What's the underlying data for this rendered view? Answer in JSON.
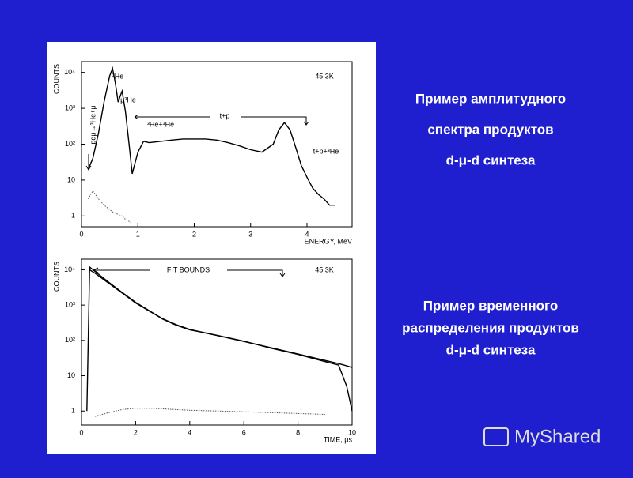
{
  "chart_data": [
    {
      "type": "line",
      "xlabel": "ENERGY, MeV",
      "ylabel": "COUNTS",
      "log_y": true,
      "xlim": [
        0,
        4.8
      ],
      "xticks": [
        0,
        1,
        2,
        3,
        4
      ],
      "ylim": [
        0.5,
        20000
      ],
      "yticks": [
        1,
        10,
        {
          "value": 100,
          "label": "10²"
        },
        {
          "value": 1000,
          "label": "10³"
        },
        {
          "value": 10000,
          "label": "10⁴"
        }
      ],
      "annotations": [
        "45.3K",
        "³He",
        "μ³He",
        "t+p",
        "³He+³He",
        "t+p+³He",
        "pdμ→³He+μ"
      ],
      "x": [
        0.12,
        0.2,
        0.3,
        0.4,
        0.5,
        0.55,
        0.6,
        0.65,
        0.7,
        0.72,
        0.78,
        0.85,
        0.9,
        0.95,
        1.0,
        1.1,
        1.2,
        1.4,
        1.6,
        1.8,
        2.0,
        2.2,
        2.4,
        2.6,
        2.8,
        3.0,
        3.2,
        3.4,
        3.5,
        3.6,
        3.7,
        3.8,
        3.9,
        4.0,
        4.1,
        4.2,
        4.3,
        4.4,
        4.5
      ],
      "series": [
        {
          "color": "#000000",
          "style": "solid",
          "values": [
            20,
            40,
            200,
            1500,
            8000,
            13000,
            5000,
            1500,
            2500,
            3000,
            800,
            80,
            15,
            30,
            60,
            120,
            110,
            120,
            130,
            140,
            140,
            140,
            130,
            110,
            90,
            70,
            60,
            100,
            250,
            400,
            250,
            80,
            25,
            12,
            6,
            4,
            3,
            2,
            2
          ]
        },
        {
          "color": "#555555",
          "style": "dotted",
          "values": [
            3,
            5,
            3,
            2,
            1.5,
            1.3,
            1.2,
            1.1,
            1,
            1,
            0.8,
            0.7,
            0.6,
            null,
            null,
            null,
            null,
            null,
            null,
            null,
            null,
            null,
            null,
            null,
            null,
            null,
            null,
            null,
            null,
            null,
            null,
            null,
            null,
            null,
            null,
            null,
            null,
            null,
            null
          ]
        }
      ]
    },
    {
      "type": "line",
      "xlabel": "TIME, μs",
      "ylabel": "COUNTS",
      "log_y": true,
      "xlim": [
        0,
        10
      ],
      "xticks": [
        0,
        2,
        4,
        6,
        8,
        10
      ],
      "ylim": [
        0.4,
        20000
      ],
      "yticks": [
        1,
        10,
        {
          "value": 100,
          "label": "10²"
        },
        {
          "value": 1000,
          "label": "10³"
        },
        {
          "value": 10000,
          "label": "10⁴"
        }
      ],
      "annotations": [
        "45.3K",
        "FIT BOUNDS"
      ],
      "x": [
        0.2,
        0.3,
        0.5,
        1,
        1.5,
        2,
        2.5,
        3,
        3.5,
        4,
        5,
        6,
        7,
        8,
        9,
        9.5,
        9.8,
        10
      ],
      "series": [
        {
          "color": "#000000",
          "style": "solid",
          "values": [
            1,
            12000,
            9000,
            4500,
            2300,
            1200,
            700,
            400,
            270,
            200,
            140,
            95,
            60,
            40,
            25,
            20,
            5,
            1
          ]
        },
        {
          "color": "#000000",
          "style": "solid",
          "values": [
            null,
            10000,
            8000,
            4200,
            2200,
            1150,
            680,
            410,
            280,
            205,
            138,
            93,
            62,
            41,
            27,
            22,
            19,
            17
          ]
        },
        {
          "color": "#555555",
          "style": "dotted",
          "values": [
            null,
            null,
            0.7,
            0.9,
            1.1,
            1.2,
            1.2,
            1.15,
            1.1,
            1.05,
            1,
            0.95,
            0.9,
            0.85,
            0.8,
            null,
            null,
            null
          ]
        }
      ]
    }
  ],
  "captions": [
    [
      "Пример амплитудного",
      "спектра продуктов",
      "d-μ-d синтеза"
    ],
    [
      "Пример временного",
      "распределения продуктов",
      "d-μ-d синтеза"
    ]
  ],
  "watermark": "MyShared"
}
